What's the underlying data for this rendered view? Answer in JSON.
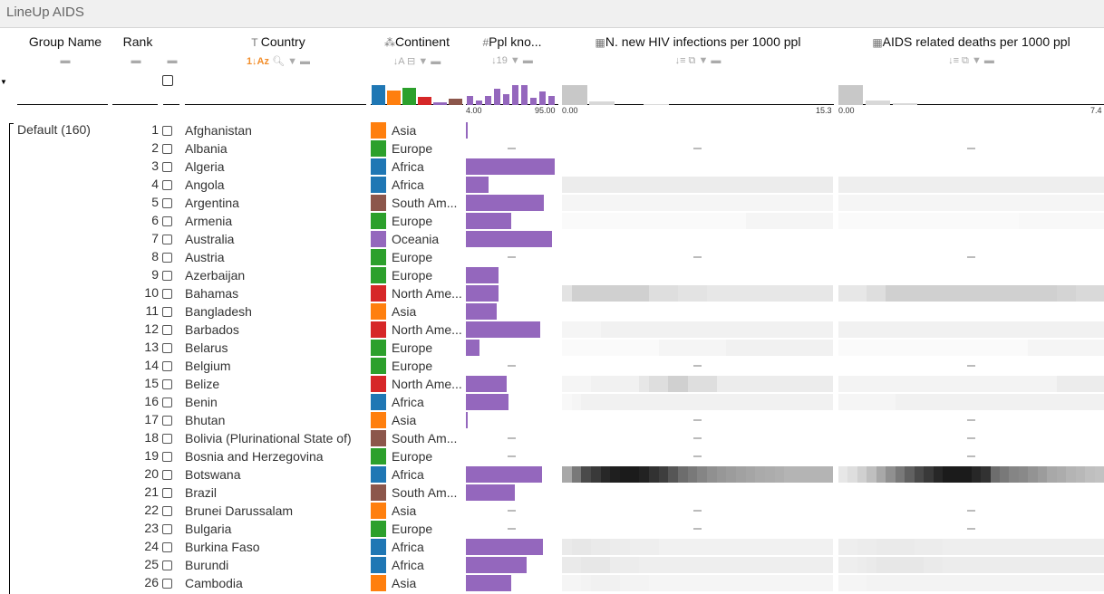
{
  "app": {
    "title": "LineUp AIDS"
  },
  "columns": {
    "group_name": "Group Name",
    "rank": "Rank",
    "country": "Country",
    "continent": "Continent",
    "ppl": "Ppl kno...",
    "hiv": "N. new HIV infections per 1000 ppl",
    "deaths": "AIDS related deaths per 1000 ppl"
  },
  "icons": {
    "country": "text-icon",
    "continent": "categorical-icon",
    "ppl": "number-icon",
    "hiv": "matrix-icon",
    "deaths": "matrix-icon"
  },
  "ranges": {
    "ppl_min": "4.00",
    "ppl_max": "95.00",
    "hiv_min": "0.00",
    "hiv_max": "15.3",
    "deaths_min": "0.00",
    "deaths_max": "7.4"
  },
  "group": {
    "label": "Default (160)"
  },
  "continent_colors": {
    "Asia": "#ff7f0e",
    "Europe": "#2ca02c",
    "Africa": "#1f77b4",
    "South America": "#8c564b",
    "Oceania": "#9467bd",
    "North America": "#d62728"
  },
  "accent": "#f28e2b",
  "bar_color": "#9467bd",
  "rows": [
    {
      "rank": "1",
      "country": "Afghanistan",
      "continent": "Asia",
      "ppl": 4,
      "hiv": null,
      "deaths": null
    },
    {
      "rank": "2",
      "country": "Albania",
      "continent": "Europe",
      "ppl": null,
      "hiv": [],
      "deaths": []
    },
    {
      "rank": "3",
      "country": "Algeria",
      "continent": "Africa",
      "ppl": 95,
      "hiv": null,
      "deaths": null
    },
    {
      "rank": "4",
      "country": "Angola",
      "continent": "Africa",
      "ppl": 27,
      "hiv": [
        0.06,
        0.06,
        0.06,
        0.06,
        0.06,
        0.06,
        0.06,
        0.06,
        0.06,
        0.06,
        0.06,
        0.06,
        0.06,
        0.06,
        0.06,
        0.06,
        0.06,
        0.06,
        0.06,
        0.06,
        0.06,
        0.06,
        0.06,
        0.06,
        0.06,
        0.06,
        0.06,
        0.06
      ],
      "deaths": [
        0.05,
        0.05,
        0.05,
        0.05,
        0.05,
        0.05,
        0.05,
        0.05,
        0.05,
        0.05,
        0.05,
        0.05,
        0.05,
        0.05,
        0.05,
        0.05,
        0.05,
        0.05,
        0.05,
        0.05,
        0.05,
        0.05,
        0.05,
        0.05,
        0.05,
        0.05,
        0.05,
        0.05
      ]
    },
    {
      "rank": "5",
      "country": "Argentina",
      "continent": "South Am...",
      "ppl": 84,
      "hiv": [
        0.02,
        0.02,
        0.02,
        0.02,
        0.02,
        0.02,
        0.02,
        0.02,
        0.02,
        0.02,
        0.02,
        0.02,
        0.02,
        0.02,
        0.02,
        0.02,
        0.02,
        0.02,
        0.02,
        0.02,
        0.02,
        0.02,
        0.02,
        0.02,
        0.02,
        0.02,
        0.02,
        0.02
      ],
      "deaths": [
        0.02,
        0.02,
        0.02,
        0.02,
        0.02,
        0.02,
        0.02,
        0.02,
        0.02,
        0.02,
        0.02,
        0.02,
        0.02,
        0.02,
        0.02,
        0.02,
        0.02,
        0.02,
        0.02,
        0.02,
        0.02,
        0.02,
        0.02,
        0.02,
        0.02,
        0.02,
        0.02,
        0.02
      ]
    },
    {
      "rank": "6",
      "country": "Armenia",
      "continent": "Europe",
      "ppl": 50,
      "hiv": [
        0,
        0,
        0,
        0,
        0,
        0,
        0,
        0,
        0,
        0,
        0,
        0,
        0,
        0,
        0,
        0,
        0,
        0,
        0,
        0.02,
        0.02,
        0.02,
        0.02,
        0.02,
        0.02,
        0.02,
        0.02,
        0.02
      ],
      "deaths": [
        0,
        0,
        0,
        0,
        0,
        0,
        0,
        0,
        0,
        0,
        0,
        0,
        0,
        0,
        0,
        0,
        0,
        0,
        0,
        0.01,
        0.01,
        0.01,
        0.01,
        0.01,
        0.01,
        0.01,
        0.01,
        0.01
      ]
    },
    {
      "rank": "7",
      "country": "Australia",
      "continent": "Oceania",
      "ppl": 92,
      "hiv": null,
      "deaths": null
    },
    {
      "rank": "8",
      "country": "Austria",
      "continent": "Europe",
      "ppl": null,
      "hiv": [],
      "deaths": []
    },
    {
      "rank": "9",
      "country": "Azerbaijan",
      "continent": "Europe",
      "ppl": 37,
      "hiv": null,
      "deaths": null
    },
    {
      "rank": "10",
      "country": "Bahamas",
      "continent": "North Ame...",
      "ppl": 37,
      "hiv": [
        0.1,
        0.18,
        0.18,
        0.18,
        0.18,
        0.18,
        0.18,
        0.18,
        0.18,
        0.12,
        0.12,
        0.12,
        0.1,
        0.1,
        0.1,
        0.08,
        0.08,
        0.08,
        0.08,
        0.08,
        0.08,
        0.08,
        0.08,
        0.08,
        0.08,
        0.08,
        0.08,
        0.08
      ],
      "deaths": [
        0.08,
        0.08,
        0.08,
        0.12,
        0.12,
        0.18,
        0.18,
        0.18,
        0.18,
        0.18,
        0.18,
        0.18,
        0.18,
        0.18,
        0.18,
        0.18,
        0.18,
        0.18,
        0.18,
        0.18,
        0.18,
        0.18,
        0.18,
        0.16,
        0.16,
        0.14,
        0.14,
        0.14
      ]
    },
    {
      "rank": "11",
      "country": "Bangladesh",
      "continent": "Asia",
      "ppl": 36,
      "hiv": null,
      "deaths": null
    },
    {
      "rank": "12",
      "country": "Barbados",
      "continent": "North Ame...",
      "ppl": 80,
      "hiv": [
        0.02,
        0.02,
        0.02,
        0.02,
        0.04,
        0.04,
        0.04,
        0.04,
        0.04,
        0.04,
        0.04,
        0.04,
        0.04,
        0.04,
        0.04,
        0.04,
        0.04,
        0.04,
        0.04,
        0.04,
        0.04,
        0.04,
        0.04,
        0.04,
        0.04,
        0.04,
        0.04,
        0.04
      ],
      "deaths": [
        0.04,
        0.04,
        0.04,
        0.04,
        0.04,
        0.04,
        0.04,
        0.04,
        0.04,
        0.04,
        0.04,
        0.04,
        0.04,
        0.04,
        0.04,
        0.04,
        0.04,
        0.04,
        0.04,
        0.04,
        0.04,
        0.04,
        0.04,
        0.04,
        0.04,
        0.04,
        0.04,
        0.04
      ]
    },
    {
      "rank": "13",
      "country": "Belarus",
      "continent": "Europe",
      "ppl": 18,
      "hiv": [
        0,
        0,
        0,
        0,
        0,
        0,
        0,
        0,
        0,
        0,
        0.02,
        0.02,
        0.02,
        0.02,
        0.02,
        0.02,
        0.02,
        0.04,
        0.04,
        0.04,
        0.04,
        0.04,
        0.04,
        0.04,
        0.04,
        0.04,
        0.04,
        0.04
      ],
      "deaths": [
        0,
        0,
        0,
        0,
        0,
        0,
        0,
        0,
        0,
        0,
        0,
        0,
        0,
        0,
        0,
        0,
        0,
        0,
        0,
        0,
        0.02,
        0.02,
        0.02,
        0.02,
        0.02,
        0.02,
        0.02,
        0.02
      ]
    },
    {
      "rank": "14",
      "country": "Belgium",
      "continent": "Europe",
      "ppl": null,
      "hiv": [],
      "deaths": []
    },
    {
      "rank": "15",
      "country": "Belize",
      "continent": "North Ame...",
      "ppl": 46,
      "hiv": [
        0.02,
        0.02,
        0.02,
        0.04,
        0.04,
        0.04,
        0.04,
        0.04,
        0.08,
        0.12,
        0.12,
        0.18,
        0.18,
        0.12,
        0.12,
        0.12,
        0.06,
        0.06,
        0.06,
        0.06,
        0.06,
        0.06,
        0.06,
        0.06,
        0.06,
        0.06,
        0.06,
        0.06
      ],
      "deaths": [
        0.03,
        0.03,
        0.03,
        0.03,
        0.03,
        0.03,
        0.03,
        0.03,
        0.03,
        0.03,
        0.03,
        0.03,
        0.03,
        0.03,
        0.03,
        0.03,
        0.03,
        0.03,
        0.03,
        0.03,
        0.03,
        0.03,
        0.03,
        0.06,
        0.06,
        0.06,
        0.06,
        0.06
      ]
    },
    {
      "rank": "16",
      "country": "Benin",
      "continent": "Africa",
      "ppl": 48,
      "hiv": [
        0.01,
        0.02,
        0.04,
        0.04,
        0.04,
        0.04,
        0.04,
        0.04,
        0.04,
        0.04,
        0.04,
        0.04,
        0.04,
        0.04,
        0.04,
        0.04,
        0.04,
        0.04,
        0.04,
        0.04,
        0.04,
        0.04,
        0.04,
        0.04,
        0.04,
        0.04,
        0.04,
        0.04
      ],
      "deaths": [
        0.02,
        0.02,
        0.02,
        0.02,
        0.02,
        0.02,
        0.04,
        0.04,
        0.04,
        0.04,
        0.04,
        0.04,
        0.04,
        0.04,
        0.04,
        0.04,
        0.04,
        0.04,
        0.04,
        0.04,
        0.04,
        0.04,
        0.04,
        0.04,
        0.04,
        0.04,
        0.04,
        0.04
      ]
    },
    {
      "rank": "17",
      "country": "Bhutan",
      "continent": "Asia",
      "ppl": 5,
      "hiv": [],
      "deaths": []
    },
    {
      "rank": "18",
      "country": "Bolivia (Plurinational State of)",
      "continent": "South Am...",
      "ppl": null,
      "hiv": [],
      "deaths": []
    },
    {
      "rank": "19",
      "country": "Bosnia and Herzegovina",
      "continent": "Europe",
      "ppl": null,
      "hiv": [],
      "deaths": []
    },
    {
      "rank": "20",
      "country": "Botswana",
      "continent": "Africa",
      "ppl": 82,
      "hiv": [
        0.35,
        0.55,
        0.75,
        0.82,
        0.9,
        0.93,
        0.95,
        0.95,
        0.92,
        0.85,
        0.8,
        0.7,
        0.6,
        0.55,
        0.5,
        0.45,
        0.42,
        0.4,
        0.38,
        0.36,
        0.34,
        0.33,
        0.32,
        0.3,
        0.3,
        0.3,
        0.3,
        0.3
      ],
      "deaths": [
        0.08,
        0.12,
        0.18,
        0.25,
        0.35,
        0.45,
        0.55,
        0.65,
        0.75,
        0.82,
        0.9,
        0.95,
        0.95,
        0.95,
        0.9,
        0.85,
        0.6,
        0.55,
        0.5,
        0.48,
        0.44,
        0.4,
        0.35,
        0.33,
        0.3,
        0.28,
        0.25,
        0.24
      ]
    },
    {
      "rank": "21",
      "country": "Brazil",
      "continent": "South Am...",
      "ppl": 54,
      "hiv": null,
      "deaths": null
    },
    {
      "rank": "22",
      "country": "Brunei Darussalam",
      "continent": "Asia",
      "ppl": null,
      "hiv": [],
      "deaths": []
    },
    {
      "rank": "23",
      "country": "Bulgaria",
      "continent": "Europe",
      "ppl": null,
      "hiv": [],
      "deaths": []
    },
    {
      "rank": "24",
      "country": "Burkina Faso",
      "continent": "Africa",
      "ppl": 83,
      "hiv": [
        0.07,
        0.08,
        0.08,
        0.07,
        0.07,
        0.06,
        0.06,
        0.05,
        0.05,
        0.05,
        0.04,
        0.04,
        0.04,
        0.04,
        0.04,
        0.04,
        0.04,
        0.04,
        0.04,
        0.04,
        0.04,
        0.04,
        0.04,
        0.04,
        0.04,
        0.04,
        0.04,
        0.04
      ],
      "deaths": [
        0.05,
        0.05,
        0.06,
        0.06,
        0.07,
        0.07,
        0.07,
        0.07,
        0.06,
        0.06,
        0.06,
        0.05,
        0.05,
        0.05,
        0.05,
        0.05,
        0.05,
        0.05,
        0.05,
        0.05,
        0.05,
        0.05,
        0.05,
        0.05,
        0.05,
        0.05,
        0.05,
        0.05
      ]
    },
    {
      "rank": "25",
      "country": "Burundi",
      "continent": "Africa",
      "ppl": 66,
      "hiv": [
        0.07,
        0.07,
        0.08,
        0.08,
        0.08,
        0.06,
        0.06,
        0.06,
        0.05,
        0.05,
        0.05,
        0.05,
        0.05,
        0.05,
        0.05,
        0.05,
        0.05,
        0.05,
        0.05,
        0.05,
        0.05,
        0.05,
        0.05,
        0.05,
        0.05,
        0.05,
        0.05,
        0.05
      ],
      "deaths": [
        0.05,
        0.05,
        0.06,
        0.07,
        0.08,
        0.08,
        0.08,
        0.08,
        0.08,
        0.07,
        0.07,
        0.06,
        0.06,
        0.06,
        0.06,
        0.06,
        0.06,
        0.06,
        0.06,
        0.06,
        0.06,
        0.06,
        0.06,
        0.06,
        0.06,
        0.06,
        0.06,
        0.06
      ]
    },
    {
      "rank": "26",
      "country": "Cambodia",
      "continent": "Asia",
      "ppl": 50,
      "hiv": [
        0.02,
        0.02,
        0.03,
        0.04,
        0.04,
        0.04,
        0.03,
        0.03,
        0.03,
        0.02,
        0.02,
        0.02,
        0.02,
        0.02,
        0.02,
        0.02,
        0.02,
        0.02,
        0.02,
        0.02,
        0.02,
        0.02,
        0.02,
        0.02,
        0.02,
        0.02,
        0.02,
        0.02
      ],
      "deaths": [
        0.02,
        0.02,
        0.02,
        0.03,
        0.03,
        0.03,
        0.03,
        0.03,
        0.03,
        0.03,
        0.03,
        0.03,
        0.03,
        0.03,
        0.03,
        0.03,
        0.03,
        0.03,
        0.03,
        0.03,
        0.03,
        0.03,
        0.03,
        0.03,
        0.03,
        0.03,
        0.03,
        0.03
      ]
    }
  ]
}
